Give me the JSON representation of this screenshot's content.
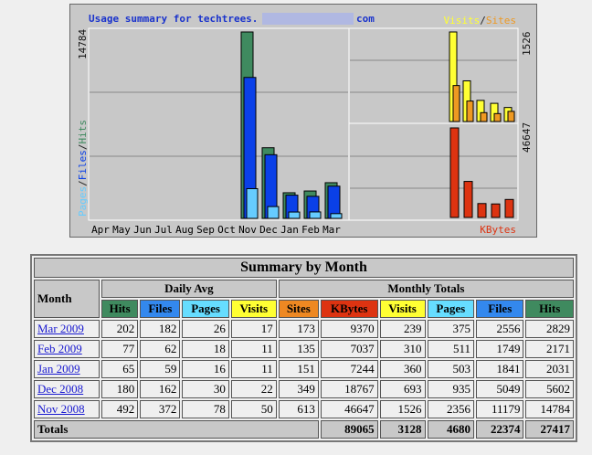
{
  "graph": {
    "title": "Usage summary for techtrees.",
    "title_suffix": "com",
    "legend_visits": "Visits",
    "legend_sep": "/",
    "legend_sites": "Sites",
    "legend_pages": "Pages",
    "legend_files": "Files",
    "legend_hits": "Hits",
    "legend_kbytes": "KBytes",
    "left_max": "14784",
    "right_top_max": "1526",
    "right_bottom_max": "46647"
  },
  "chart_data": {
    "type": "bar",
    "months": [
      "Apr",
      "May",
      "Jun",
      "Jul",
      "Aug",
      "Sep",
      "Oct",
      "Nov",
      "Dec",
      "Jan",
      "Feb",
      "Mar"
    ],
    "hits": [
      0,
      0,
      0,
      0,
      0,
      0,
      0,
      14784,
      5602,
      2031,
      2171,
      2829
    ],
    "files": [
      0,
      0,
      0,
      0,
      0,
      0,
      0,
      11179,
      5049,
      1841,
      1749,
      2556
    ],
    "pages": [
      0,
      0,
      0,
      0,
      0,
      0,
      0,
      2356,
      935,
      503,
      511,
      375
    ],
    "visits_months": [
      "Nov",
      "Dec",
      "Jan",
      "Feb",
      "Mar"
    ],
    "visits": [
      1526,
      693,
      360,
      310,
      239
    ],
    "sites": [
      613,
      349,
      151,
      135,
      173
    ],
    "kbytes": [
      46647,
      18767,
      7244,
      7037,
      9370
    ],
    "colors": {
      "hits": "#3f8a5f",
      "files": "#0a40e8",
      "pages": "#66ccff",
      "visits": "#ffff33",
      "sites": "#ee9922",
      "kbytes": "#dd3311"
    }
  },
  "table": {
    "title": "Summary by Month",
    "month_header": "Month",
    "daily_avg": "Daily Avg",
    "monthly_totals": "Monthly Totals",
    "daily_cols": [
      "Hits",
      "Files",
      "Pages",
      "Visits"
    ],
    "monthly_cols": [
      "Sites",
      "KBytes",
      "Visits",
      "Pages",
      "Files",
      "Hits"
    ],
    "rows": [
      {
        "month": "Mar 2009",
        "v": [
          "202",
          "182",
          "26",
          "17",
          "173",
          "9370",
          "239",
          "375",
          "2556",
          "2829"
        ]
      },
      {
        "month": "Feb 2009",
        "v": [
          "77",
          "62",
          "18",
          "11",
          "135",
          "7037",
          "310",
          "511",
          "1749",
          "2171"
        ]
      },
      {
        "month": "Jan 2009",
        "v": [
          "65",
          "59",
          "16",
          "11",
          "151",
          "7244",
          "360",
          "503",
          "1841",
          "2031"
        ]
      },
      {
        "month": "Dec 2008",
        "v": [
          "180",
          "162",
          "30",
          "22",
          "349",
          "18767",
          "693",
          "935",
          "5049",
          "5602"
        ]
      },
      {
        "month": "Nov 2008",
        "v": [
          "492",
          "372",
          "78",
          "50",
          "613",
          "46647",
          "1526",
          "2356",
          "11179",
          "14784"
        ]
      }
    ],
    "totals_label": "Totals",
    "totals": [
      "89065",
      "3128",
      "4680",
      "22374",
      "27417"
    ]
  }
}
